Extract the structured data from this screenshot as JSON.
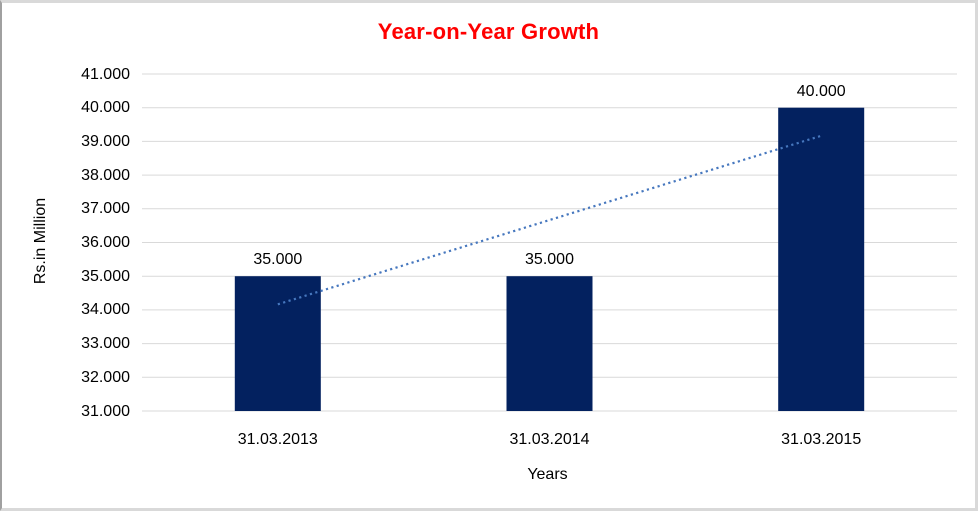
{
  "window": {
    "background_color": "#ffffff",
    "border_color": "#d9d9d9"
  },
  "chart_data": {
    "type": "bar",
    "title": "Year-on-Year Growth",
    "title_color": "#ff0000",
    "xlabel": "Years",
    "ylabel": "Rs.in Million",
    "categories": [
      "31.03.2013",
      "31.03.2014",
      "31.03.2015"
    ],
    "values": [
      35000,
      35000,
      40000
    ],
    "data_labels": [
      "35.000",
      "35.000",
      "40.000"
    ],
    "ylim": [
      31000,
      41000
    ],
    "ytick_step": 1000,
    "ytick_labels": [
      "31.000",
      "32.000",
      "33.000",
      "34.000",
      "35.000",
      "36.000",
      "37.000",
      "38.000",
      "39.000",
      "40.000",
      "41.000"
    ],
    "grid": "horizontal",
    "gridline_color": "#d9d9d9",
    "bar_color": "#03215f",
    "legend": "none",
    "trendline": {
      "type": "linear",
      "style": "dotted",
      "color": "#4677be",
      "start_value": 34167,
      "end_value": 39167
    }
  }
}
